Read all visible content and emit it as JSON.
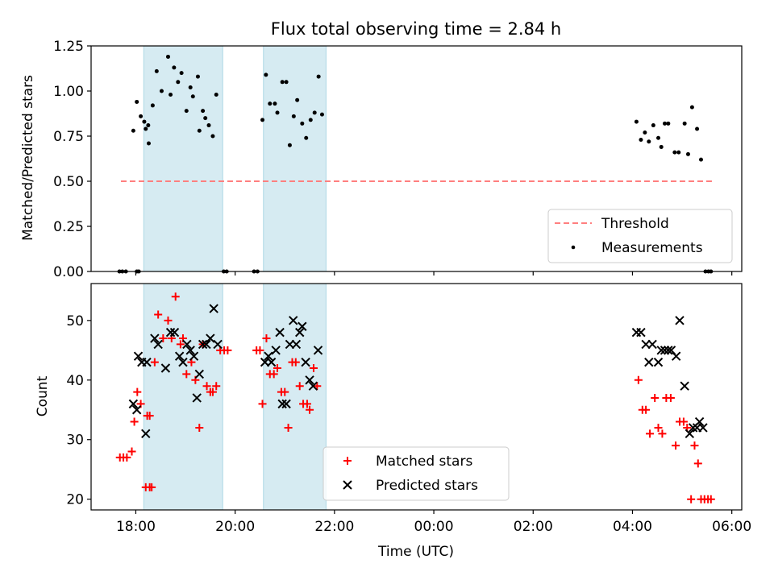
{
  "chart_data": [
    {
      "type": "scatter",
      "title": "Flux total observing time = 2.84 h",
      "xlabel": "",
      "ylabel": "Matched/Predicted stars",
      "xlim": [
        -6.9,
        6.2
      ],
      "ylim": [
        0,
        1.25
      ],
      "yticks": [
        0,
        0.25,
        0.5,
        0.75,
        1.0,
        1.25
      ],
      "yticklabels": [
        "0.00",
        "0.25",
        "0.50",
        "0.75",
        "1.00",
        "1.25"
      ],
      "xticks": [
        -6,
        -4,
        -2,
        0,
        2,
        4,
        6
      ],
      "shaded_intervals": [
        [
          -5.84,
          -4.25
        ],
        [
          -3.43,
          -2.17
        ]
      ],
      "legend_position": "lower right",
      "series": [
        {
          "name": "Threshold",
          "style": "dashed-line",
          "color": "#ff7f7f",
          "x": [
            -6.3,
            5.6
          ],
          "y": [
            0.5,
            0.5
          ]
        },
        {
          "name": "Measurements",
          "style": "dot",
          "color": "#000000",
          "points": [
            [
              -6.33,
              0
            ],
            [
              -6.27,
              0
            ],
            [
              -6.2,
              0
            ],
            [
              -5.98,
              0
            ],
            [
              -5.94,
              0
            ],
            [
              -6.05,
              0.78
            ],
            [
              -5.98,
              0.94
            ],
            [
              -5.9,
              0.86
            ],
            [
              -5.83,
              0.83
            ],
            [
              -5.74,
              0.71
            ],
            [
              -5.8,
              0.79
            ],
            [
              -5.75,
              0.81
            ],
            [
              -5.66,
              0.92
            ],
            [
              -5.58,
              1.11
            ],
            [
              -5.48,
              1.0
            ],
            [
              -5.35,
              1.19
            ],
            [
              -5.3,
              0.98
            ],
            [
              -5.23,
              1.13
            ],
            [
              -5.15,
              1.05
            ],
            [
              -5.08,
              1.1
            ],
            [
              -4.98,
              0.89
            ],
            [
              -4.9,
              1.02
            ],
            [
              -4.85,
              0.97
            ],
            [
              -4.75,
              1.08
            ],
            [
              -4.72,
              0.78
            ],
            [
              -4.65,
              0.89
            ],
            [
              -4.6,
              0.85
            ],
            [
              -4.53,
              0.81
            ],
            [
              -4.45,
              0.75
            ],
            [
              -4.38,
              0.98
            ],
            [
              -4.23,
              0
            ],
            [
              -4.17,
              0
            ],
            [
              -3.62,
              0
            ],
            [
              -3.55,
              0
            ],
            [
              -3.45,
              0.84
            ],
            [
              -3.38,
              1.09
            ],
            [
              -3.3,
              0.93
            ],
            [
              -3.2,
              0.93
            ],
            [
              -3.15,
              0.88
            ],
            [
              -3.05,
              1.05
            ],
            [
              -2.97,
              1.05
            ],
            [
              -2.9,
              0.7
            ],
            [
              -2.82,
              0.86
            ],
            [
              -2.75,
              0.95
            ],
            [
              -2.65,
              0.82
            ],
            [
              -2.57,
              0.74
            ],
            [
              -2.48,
              0.84
            ],
            [
              -2.4,
              0.88
            ],
            [
              -2.32,
              1.08
            ],
            [
              -2.25,
              0.87
            ],
            [
              4.08,
              0.83
            ],
            [
              4.17,
              0.73
            ],
            [
              4.25,
              0.77
            ],
            [
              4.33,
              0.72
            ],
            [
              4.42,
              0.81
            ],
            [
              4.52,
              0.74
            ],
            [
              4.58,
              0.69
            ],
            [
              4.65,
              0.82
            ],
            [
              4.72,
              0.82
            ],
            [
              4.85,
              0.66
            ],
            [
              4.93,
              0.66
            ],
            [
              5.05,
              0.82
            ],
            [
              5.12,
              0.65
            ],
            [
              5.2,
              0.91
            ],
            [
              5.3,
              0.79
            ],
            [
              5.38,
              0.62
            ],
            [
              5.47,
              0
            ],
            [
              5.53,
              0
            ],
            [
              5.58,
              0
            ]
          ]
        }
      ]
    },
    {
      "type": "scatter",
      "title": "",
      "xlabel": "Time (UTC)",
      "ylabel": "Count",
      "xlim": [
        -6.9,
        6.2
      ],
      "ylim": [
        18.2,
        56.2
      ],
      "yticks": [
        20,
        30,
        40,
        50
      ],
      "yticklabels": [
        "20",
        "30",
        "40",
        "50"
      ],
      "xticks": [
        -6,
        -4,
        -2,
        0,
        2,
        4,
        6
      ],
      "xticklabels": [
        "18:00",
        "20:00",
        "22:00",
        "00:00",
        "02:00",
        "04:00",
        "06:00"
      ],
      "shaded_intervals": [
        [
          -5.84,
          -4.25
        ],
        [
          -3.43,
          -2.17
        ]
      ],
      "legend_position": "lower center",
      "series": [
        {
          "name": "Matched stars",
          "style": "plus",
          "color": "#ff0000",
          "points": [
            [
              -6.32,
              27
            ],
            [
              -6.25,
              27
            ],
            [
              -6.18,
              27
            ],
            [
              -6.08,
              28
            ],
            [
              -6.03,
              33
            ],
            [
              -5.97,
              38
            ],
            [
              -5.9,
              36
            ],
            [
              -5.8,
              22
            ],
            [
              -5.72,
              22
            ],
            [
              -5.68,
              22
            ],
            [
              -5.77,
              34
            ],
            [
              -5.72,
              34
            ],
            [
              -5.62,
              43
            ],
            [
              -5.55,
              51
            ],
            [
              -5.45,
              47
            ],
            [
              -5.35,
              50
            ],
            [
              -5.28,
              47
            ],
            [
              -5.2,
              54
            ],
            [
              -5.1,
              46
            ],
            [
              -5.05,
              47
            ],
            [
              -4.98,
              41
            ],
            [
              -4.88,
              43
            ],
            [
              -4.8,
              40
            ],
            [
              -4.72,
              32
            ],
            [
              -4.65,
              46
            ],
            [
              -4.57,
              39
            ],
            [
              -4.5,
              38
            ],
            [
              -4.45,
              38
            ],
            [
              -4.38,
              39
            ],
            [
              -4.3,
              45
            ],
            [
              -4.22,
              45
            ],
            [
              -4.15,
              45
            ],
            [
              -3.57,
              45
            ],
            [
              -3.5,
              45
            ],
            [
              -3.45,
              36
            ],
            [
              -3.37,
              47
            ],
            [
              -3.3,
              41
            ],
            [
              -3.22,
              41
            ],
            [
              -3.15,
              42
            ],
            [
              -3.07,
              38
            ],
            [
              -3.0,
              38
            ],
            [
              -2.93,
              32
            ],
            [
              -2.85,
              43
            ],
            [
              -2.78,
              43
            ],
            [
              -2.7,
              39
            ],
            [
              -2.63,
              36
            ],
            [
              -2.55,
              36
            ],
            [
              -2.5,
              35
            ],
            [
              -2.42,
              42
            ],
            [
              -2.35,
              39
            ],
            [
              4.12,
              40
            ],
            [
              4.2,
              35
            ],
            [
              4.27,
              35
            ],
            [
              4.35,
              31
            ],
            [
              4.45,
              37
            ],
            [
              4.52,
              32
            ],
            [
              4.6,
              31
            ],
            [
              4.68,
              37
            ],
            [
              4.77,
              37
            ],
            [
              4.87,
              29
            ],
            [
              4.95,
              33
            ],
            [
              5.03,
              33
            ],
            [
              5.1,
              32
            ],
            [
              5.18,
              20
            ],
            [
              5.25,
              29
            ],
            [
              5.32,
              26
            ],
            [
              5.38,
              20
            ],
            [
              5.45,
              20
            ],
            [
              5.52,
              20
            ],
            [
              5.58,
              20
            ]
          ]
        },
        {
          "name": "Predicted stars",
          "style": "x",
          "color": "#000000",
          "points": [
            [
              -6.05,
              36
            ],
            [
              -5.98,
              35
            ],
            [
              -5.95,
              44
            ],
            [
              -5.88,
              43
            ],
            [
              -5.8,
              31
            ],
            [
              -5.78,
              43
            ],
            [
              -5.62,
              47
            ],
            [
              -5.55,
              46
            ],
            [
              -5.4,
              42
            ],
            [
              -5.3,
              48
            ],
            [
              -5.22,
              48
            ],
            [
              -5.12,
              44
            ],
            [
              -5.05,
              43
            ],
            [
              -4.97,
              46
            ],
            [
              -4.9,
              45
            ],
            [
              -4.83,
              44
            ],
            [
              -4.77,
              37
            ],
            [
              -4.72,
              41
            ],
            [
              -4.65,
              46
            ],
            [
              -4.58,
              46
            ],
            [
              -4.5,
              47
            ],
            [
              -4.43,
              52
            ],
            [
              -4.35,
              46
            ],
            [
              -3.4,
              43
            ],
            [
              -3.33,
              44
            ],
            [
              -3.27,
              43
            ],
            [
              -3.18,
              45
            ],
            [
              -3.1,
              48
            ],
            [
              -3.05,
              36
            ],
            [
              -2.97,
              36
            ],
            [
              -2.9,
              46
            ],
            [
              -2.83,
              50
            ],
            [
              -2.77,
              46
            ],
            [
              -2.7,
              48
            ],
            [
              -2.65,
              49
            ],
            [
              -2.58,
              43
            ],
            [
              -2.5,
              40
            ],
            [
              -2.43,
              39
            ],
            [
              -2.33,
              45
            ],
            [
              4.08,
              48
            ],
            [
              4.17,
              48
            ],
            [
              4.27,
              46
            ],
            [
              4.33,
              43
            ],
            [
              4.4,
              46
            ],
            [
              4.52,
              43
            ],
            [
              4.58,
              45
            ],
            [
              4.65,
              45
            ],
            [
              4.72,
              45
            ],
            [
              4.78,
              45
            ],
            [
              4.88,
              44
            ],
            [
              4.95,
              50
            ],
            [
              5.05,
              39
            ],
            [
              5.15,
              31
            ],
            [
              5.22,
              32
            ],
            [
              5.3,
              32
            ],
            [
              5.35,
              33
            ],
            [
              5.42,
              32
            ]
          ]
        }
      ]
    }
  ]
}
